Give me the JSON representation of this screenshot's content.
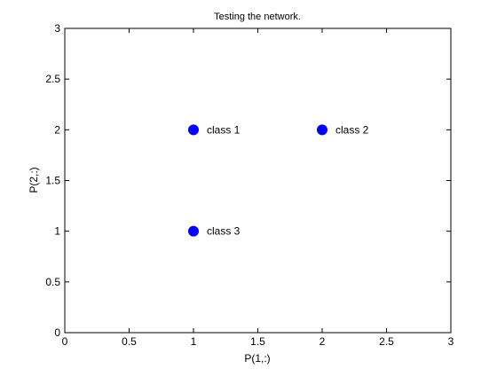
{
  "chart_data": {
    "type": "scatter",
    "title": "Testing the network.",
    "xlabel": "P(1,:)",
    "ylabel": "P(2,:)",
    "xlim": [
      0,
      3
    ],
    "ylim": [
      0,
      3
    ],
    "xticks": [
      0,
      0.5,
      1,
      1.5,
      2,
      2.5,
      3
    ],
    "yticks": [
      0,
      0.5,
      1,
      1.5,
      2,
      2.5,
      3
    ],
    "xtick_labels": [
      "0",
      "0.5",
      "1",
      "1.5",
      "2",
      "2.5",
      "3"
    ],
    "ytick_labels": [
      "0",
      "0.5",
      "1",
      "1.5",
      "2",
      "2.5",
      "3"
    ],
    "grid": false,
    "marker_color": "#0000ff",
    "points": [
      {
        "x": 1,
        "y": 2,
        "label": "class 1"
      },
      {
        "x": 2,
        "y": 2,
        "label": "class 2"
      },
      {
        "x": 1,
        "y": 1,
        "label": "class 3"
      }
    ]
  }
}
